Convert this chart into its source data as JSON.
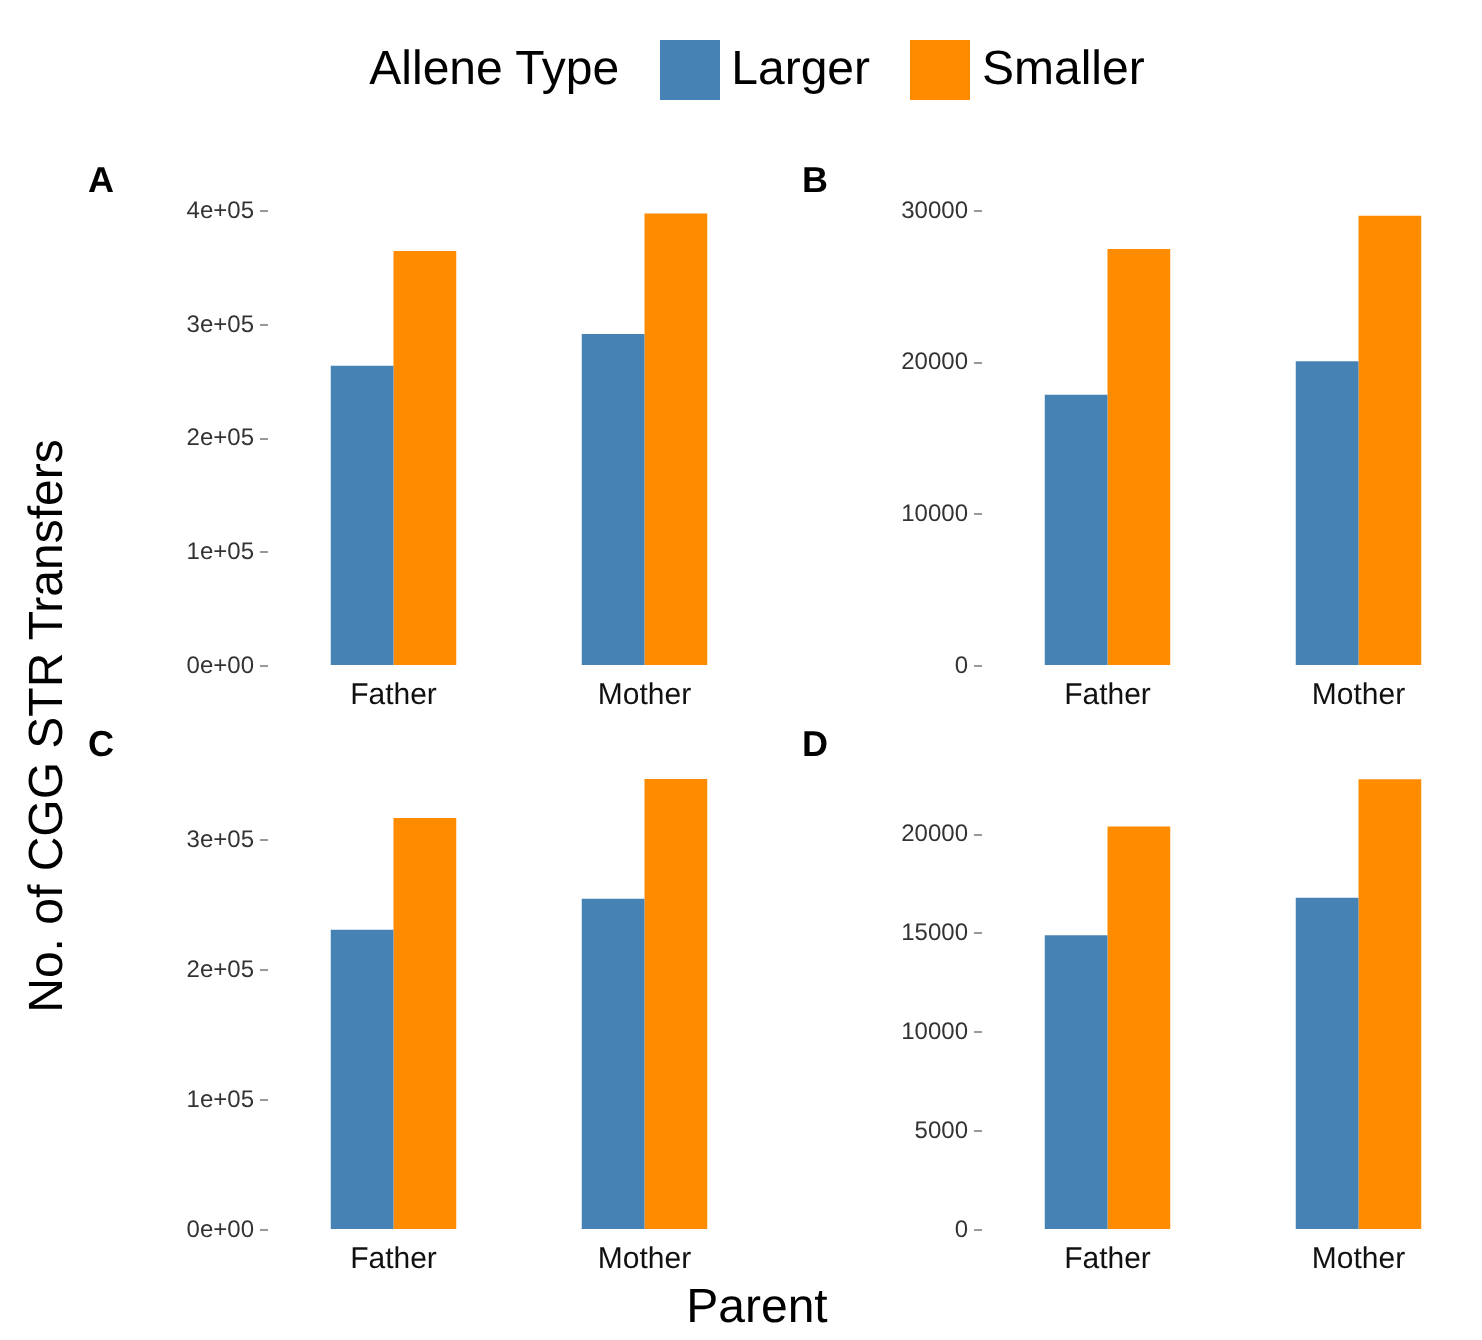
{
  "chart_data": [
    {
      "type": "bar",
      "title": "A",
      "legend_title": "Allene Type",
      "legend": "top",
      "xlabel": "Parent",
      "ylabel": "No. of CGG STR Transfers",
      "categories": [
        "Father",
        "Mother"
      ],
      "series": [
        {
          "name": "Larger",
          "color": "#4682b4",
          "values": [
            264000,
            292000
          ]
        },
        {
          "name": "Smaller",
          "color": "#ff8c00",
          "values": [
            365000,
            398000
          ]
        }
      ],
      "ylim": [
        0,
        400000
      ],
      "yticks": [
        {
          "value": 0,
          "label": "0e+00"
        },
        {
          "value": 100000,
          "label": "1e+05"
        },
        {
          "value": 200000,
          "label": "2e+05"
        },
        {
          "value": 300000,
          "label": "3e+05"
        },
        {
          "value": 400000,
          "label": "4e+05"
        }
      ],
      "grid": false
    },
    {
      "type": "bar",
      "title": "B",
      "categories": [
        "Father",
        "Mother"
      ],
      "series": [
        {
          "color": "#4682b4",
          "values": [
            17900,
            20100
          ]
        },
        {
          "color": "#ff8c00",
          "values": [
            27500,
            29700
          ]
        }
      ],
      "ylim": [
        0,
        30000
      ],
      "yticks": [
        0,
        10000,
        20000,
        30000
      ],
      "grid": false
    },
    {
      "type": "bar",
      "title": "C",
      "categories": [
        "Father",
        "Mother"
      ],
      "series": [
        {
          "color": "#4682b4",
          "values": [
            231000,
            255000
          ]
        },
        {
          "color": "#ff8c00",
          "values": [
            317000,
            347000
          ]
        }
      ],
      "ylim": [
        0,
        350000
      ],
      "yticks": [
        {
          "value": 0,
          "label": "0e+00"
        },
        {
          "value": 100000,
          "label": "1e+05"
        },
        {
          "value": 200000,
          "label": "2e+05"
        },
        {
          "value": 300000,
          "label": "3e+05"
        }
      ],
      "grid": false
    },
    {
      "type": "bar",
      "title": "D",
      "categories": [
        "Father",
        "Mother"
      ],
      "series": [
        {
          "color": "#4682b4",
          "values": [
            14900,
            16800
          ]
        },
        {
          "color": "#ff8c00",
          "values": [
            20400,
            22800
          ]
        }
      ],
      "ylim": [
        0,
        23000
      ],
      "yticks": [
        0,
        5000,
        10000,
        15000,
        20000
      ],
      "grid": false
    }
  ]
}
